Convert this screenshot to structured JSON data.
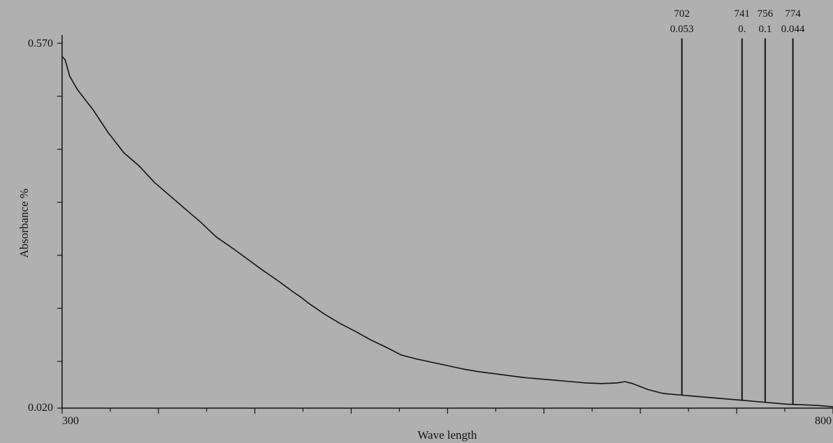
{
  "colors": {
    "background": "#b0b0b0",
    "ink": "#111111"
  },
  "chart_data": {
    "type": "line",
    "title": "",
    "xlabel": "Wave length",
    "ylabel": "Absorbance %",
    "xlim": [
      300,
      800
    ],
    "ylim": [
      0.02,
      0.57
    ],
    "x_tick_labels": [
      "300",
      "800"
    ],
    "y_tick_labels": [
      "0.570",
      "0.020"
    ],
    "grid": false,
    "series": [
      {
        "x": [
          300,
          302,
          305,
          310,
          320,
          330,
          335,
          340,
          350,
          360,
          370,
          380,
          390,
          400,
          410,
          420,
          430,
          440,
          450,
          455,
          460,
          470,
          480,
          490,
          500,
          510,
          520,
          530,
          540,
          550,
          560,
          570,
          580,
          590,
          600,
          610,
          620,
          630,
          640,
          650,
          660,
          665,
          670,
          680,
          690,
          700,
          710,
          720,
          730,
          740,
          750,
          760,
          770,
          780,
          790,
          800
        ],
        "y": [
          0.55,
          0.545,
          0.52,
          0.5,
          0.47,
          0.435,
          0.42,
          0.405,
          0.385,
          0.36,
          0.34,
          0.32,
          0.3,
          0.278,
          0.262,
          0.245,
          0.228,
          0.212,
          0.195,
          0.187,
          0.178,
          0.162,
          0.148,
          0.136,
          0.123,
          0.112,
          0.1,
          0.094,
          0.089,
          0.084,
          0.079,
          0.075,
          0.072,
          0.069,
          0.066,
          0.064,
          0.062,
          0.06,
          0.058,
          0.057,
          0.058,
          0.06,
          0.057,
          0.048,
          0.042,
          0.04,
          0.038,
          0.036,
          0.034,
          0.032,
          0.03,
          0.028,
          0.026,
          0.025,
          0.024,
          0.022
        ]
      }
    ],
    "peak_markers": [
      {
        "wavelength": 702,
        "label_top": "702",
        "label_bottom": "0.053"
      },
      {
        "wavelength": 741,
        "label_top": "741",
        "label_bottom": "0."
      },
      {
        "wavelength": 756,
        "label_top": "756",
        "label_bottom": "0.1"
      },
      {
        "wavelength": 774,
        "label_top": "774",
        "label_bottom": "0.044"
      }
    ]
  }
}
